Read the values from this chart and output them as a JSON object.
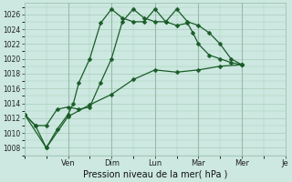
{
  "xlabel": "Pression niveau de la mer( hPa )",
  "background_color": "#cce8e0",
  "plot_bg_color": "#cce8e0",
  "grid_color": "#aaccbb",
  "line_color": "#1a5c28",
  "ylim": [
    1007,
    1027.5
  ],
  "ytick_values": [
    1008,
    1010,
    1012,
    1014,
    1016,
    1018,
    1020,
    1022,
    1024,
    1026
  ],
  "xlim": [
    0,
    24
  ],
  "day_tick_positions": [
    4,
    8,
    12,
    16,
    20,
    24
  ],
  "day_tick_labels": [
    "Ven",
    "Dim",
    "Lun",
    "Mar",
    "Mer",
    "Je"
  ],
  "minor_x_positions": [
    2,
    4,
    6,
    8,
    10,
    12,
    14,
    16,
    18,
    20,
    22,
    24
  ],
  "s1x": [
    0,
    1,
    2,
    3,
    4,
    5,
    6,
    7,
    8,
    9,
    10,
    11,
    12,
    13,
    14,
    15,
    16,
    17,
    18,
    19,
    20
  ],
  "s1y": [
    1012.5,
    1011.0,
    1011.0,
    1013.2,
    1013.5,
    1013.2,
    1013.5,
    1016.8,
    1020.0,
    1025.0,
    1026.7,
    1025.5,
    1025.0,
    1025.0,
    1026.7,
    1025.0,
    1024.5,
    1023.5,
    1022.0,
    1020.0,
    1019.2
  ],
  "s2x": [
    0,
    1,
    2,
    3,
    4,
    4.5,
    5,
    6,
    7,
    8,
    9,
    10,
    11,
    12,
    13,
    14,
    15,
    15.5,
    16,
    17,
    18,
    19,
    20
  ],
  "s2y": [
    1012.5,
    1011.0,
    1008.0,
    1010.5,
    1012.5,
    1014.0,
    1016.8,
    1020.0,
    1024.8,
    1026.7,
    1025.5,
    1025.0,
    1025.0,
    1026.7,
    1025.0,
    1024.5,
    1024.8,
    1023.5,
    1022.0,
    1020.5,
    1020.0,
    1019.5,
    1019.2
  ],
  "s3x": [
    0,
    2,
    4,
    6,
    8,
    10,
    12,
    14,
    16,
    18,
    20
  ],
  "s3y": [
    1012.5,
    1008.0,
    1012.2,
    1013.8,
    1015.2,
    1017.2,
    1018.5,
    1018.2,
    1018.5,
    1019.0,
    1019.2
  ]
}
